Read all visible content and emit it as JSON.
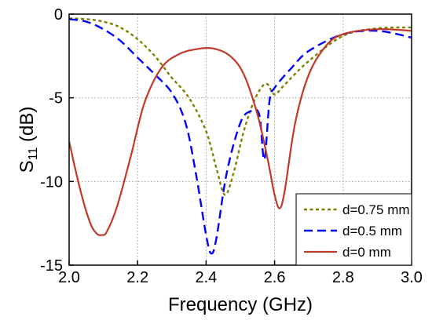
{
  "chart_data": {
    "type": "line",
    "xlabel": "Frequency (GHz)",
    "ylabel": {
      "main": "S",
      "sub": "11",
      "unit": " (dB)"
    },
    "xlim": [
      2.0,
      3.0
    ],
    "ylim": [
      -15,
      0
    ],
    "x_ticks": [
      2.0,
      2.2,
      2.4,
      2.6,
      2.8,
      3.0
    ],
    "x_tick_labels": [
      "2.0",
      "2.2",
      "2.4",
      "2.6",
      "2.8",
      "3.0"
    ],
    "y_ticks": [
      0,
      -5,
      -10,
      -15
    ],
    "y_tick_labels": [
      "0",
      "-5",
      "-10",
      "-15"
    ],
    "grid": "dotted",
    "legend_position": "bottom-right",
    "series": [
      {
        "name": "d=0.75 mm",
        "color": "#808000",
        "style": "short-dash",
        "x": [
          2.0,
          2.05,
          2.1,
          2.15,
          2.2,
          2.25,
          2.3,
          2.35,
          2.4,
          2.43,
          2.455,
          2.48,
          2.51,
          2.54,
          2.565,
          2.58,
          2.6,
          2.63,
          2.7,
          2.8,
          2.9,
          3.0
        ],
        "y": [
          -0.25,
          -0.3,
          -0.45,
          -0.8,
          -1.5,
          -2.5,
          -3.8,
          -5.0,
          -7.0,
          -9.2,
          -10.8,
          -9.5,
          -7.0,
          -5.2,
          -4.3,
          -4.2,
          -4.8,
          -4.2,
          -2.8,
          -1.3,
          -0.85,
          -0.8
        ]
      },
      {
        "name": "d=0.5 mm",
        "color": "#0000ff",
        "style": "long-dash",
        "x": [
          2.0,
          2.05,
          2.1,
          2.15,
          2.2,
          2.25,
          2.3,
          2.34,
          2.37,
          2.4,
          2.415,
          2.43,
          2.46,
          2.5,
          2.53,
          2.555,
          2.57,
          2.585,
          2.6,
          2.65,
          2.7,
          2.8,
          2.9,
          3.0
        ],
        "y": [
          -0.3,
          -0.45,
          -0.9,
          -1.6,
          -2.6,
          -3.6,
          -4.7,
          -6.5,
          -9.5,
          -13.2,
          -14.3,
          -13.4,
          -9.5,
          -6.5,
          -5.8,
          -6.0,
          -8.7,
          -5.2,
          -4.4,
          -3.2,
          -2.2,
          -1.2,
          -1.0,
          -1.4
        ]
      },
      {
        "name": "d=0 mm",
        "color": "#c0392b",
        "style": "solid",
        "x": [
          2.0,
          2.03,
          2.06,
          2.08,
          2.095,
          2.11,
          2.14,
          2.18,
          2.22,
          2.27,
          2.32,
          2.37,
          2.42,
          2.47,
          2.51,
          2.55,
          2.58,
          2.6,
          2.615,
          2.63,
          2.66,
          2.7,
          2.75,
          2.8,
          2.9,
          3.0
        ],
        "y": [
          -7.6,
          -10.3,
          -12.4,
          -13.1,
          -13.2,
          -13.0,
          -11.5,
          -8.5,
          -5.3,
          -3.2,
          -2.4,
          -2.1,
          -2.05,
          -2.5,
          -3.6,
          -6.0,
          -8.7,
          -10.8,
          -11.6,
          -10.5,
          -6.5,
          -3.6,
          -1.9,
          -1.2,
          -0.9,
          -1.0
        ]
      }
    ]
  }
}
